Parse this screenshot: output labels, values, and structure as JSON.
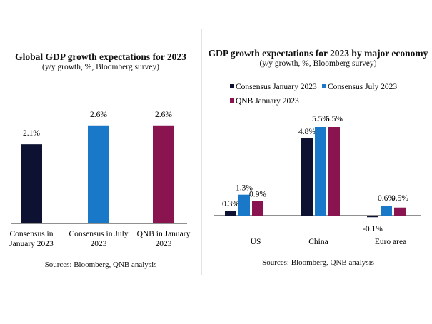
{
  "chart_data": [
    {
      "type": "bar",
      "title": "Global GDP growth expectations for 2023",
      "subtitle": "(y/y growth, %, Bloomberg survey)",
      "source": "Sources: Bloomberg, QNB analysis",
      "categories": [
        [
          "Consensus in",
          "January 2023"
        ],
        [
          "Consensus in July",
          "2023"
        ],
        [
          "QNB in January",
          "2023"
        ]
      ],
      "values": [
        2.1,
        2.6,
        2.6
      ],
      "value_labels": [
        "2.1%",
        "2.6%",
        "2.6%"
      ],
      "colors": [
        "#0d1233",
        "#1a78c8",
        "#8a1450"
      ],
      "xlabel": "",
      "ylabel": "",
      "ylim": [
        0,
        3.6
      ],
      "grid": false
    },
    {
      "type": "bar",
      "title": "GDP growth expectations for 2023 by major economy",
      "subtitle": "(y/y growth, %, Bloomberg survey)",
      "source": "Sources: Bloomberg, QNB analysis",
      "categories": [
        "US",
        "China",
        "Euro area"
      ],
      "series": [
        {
          "name": "Consensus January 2023",
          "color": "#0d1233",
          "values": [
            0.3,
            4.8,
            -0.1
          ],
          "labels": [
            "0.3%",
            "4.8%",
            "-0.1%"
          ]
        },
        {
          "name": "Consensus July 2023",
          "color": "#1a78c8",
          "values": [
            1.3,
            5.5,
            0.6
          ],
          "labels": [
            "1.3%",
            "5.5%",
            "0.6%"
          ]
        },
        {
          "name": "QNB January 2023",
          "color": "#8a1450",
          "values": [
            0.9,
            5.5,
            0.5
          ],
          "labels": [
            "0.9%",
            "5.5%",
            "0.5%"
          ]
        }
      ],
      "xlabel": "",
      "ylabel": "",
      "ylim": [
        -0.6,
        6.3
      ],
      "grid": false,
      "legend": "top-left"
    }
  ]
}
